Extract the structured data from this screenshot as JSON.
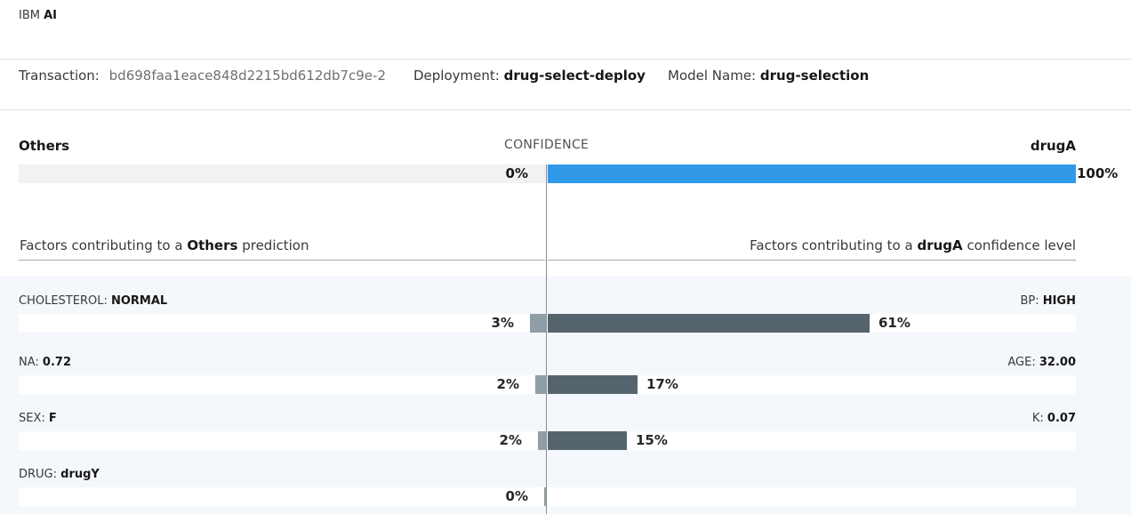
{
  "header": {
    "brand_prefix": "IBM",
    "brand_bold": "AI"
  },
  "meta": {
    "transaction_label": "Transaction:",
    "transaction_value": "bd698faa1eace848d2215bd612db7c9e-2",
    "deployment_label": "Deployment:",
    "deployment_value": "drug-select-deploy",
    "model_label": "Model Name:",
    "model_value": "drug-selection"
  },
  "confidence": {
    "left_label": "Others",
    "center_label": "CONFIDENCE",
    "right_label": "drugA",
    "left_value": "0%",
    "right_value": "100%",
    "right_fraction": 1.0,
    "left_fraction": 0.0,
    "bar_color": "#309ae9"
  },
  "factors": {
    "left_heading_prefix": "Factors contributing to a",
    "left_heading_bold": "Others",
    "left_heading_suffix": "prediction",
    "right_heading_prefix": "Factors contributing to a",
    "right_heading_bold": "drugA",
    "right_heading_suffix": "confidence level",
    "rows": [
      {
        "left_name": "CHOLESTEROL:",
        "left_value": "NORMAL",
        "left_pct": "3%",
        "left_fraction": 0.03,
        "right_name": "BP:",
        "right_value": "HIGH",
        "right_pct": "61%",
        "right_fraction": 0.61
      },
      {
        "left_name": "NA:",
        "left_value": "0.72",
        "left_pct": "2%",
        "left_fraction": 0.02,
        "right_name": "AGE:",
        "right_value": "32.00",
        "right_pct": "17%",
        "right_fraction": 0.17
      },
      {
        "left_name": "SEX:",
        "left_value": "F",
        "left_pct": "2%",
        "left_fraction": 0.015,
        "right_name": "K:",
        "right_value": "0.07",
        "right_pct": "15%",
        "right_fraction": 0.15
      },
      {
        "left_name": "DRUG:",
        "left_value": "drugY",
        "left_pct": "0%",
        "left_fraction": 0.003,
        "right_name": "",
        "right_value": "",
        "right_pct": "",
        "right_fraction": 0
      }
    ],
    "positive_color": "#55646c",
    "negative_color": "#8f9ea6"
  }
}
